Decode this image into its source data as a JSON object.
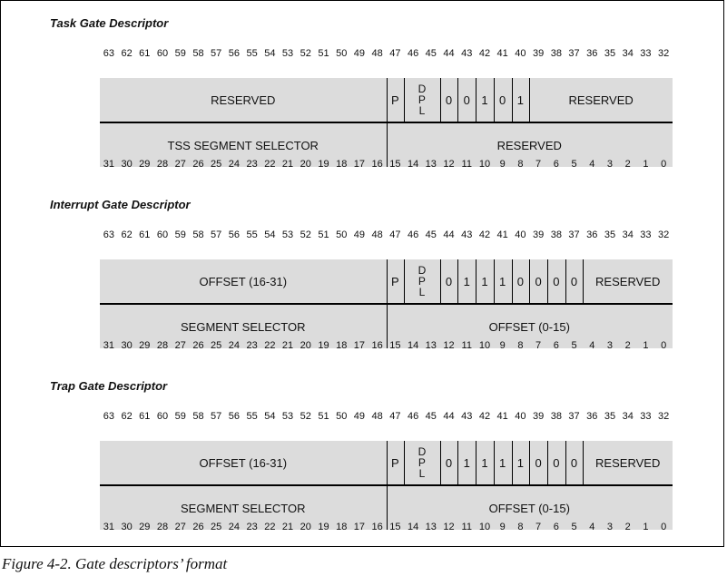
{
  "caption": "Figure 4-2. Gate descriptors’ format",
  "high_bits": [
    "63",
    "62",
    "61",
    "60",
    "59",
    "58",
    "57",
    "56",
    "55",
    "54",
    "53",
    "52",
    "51",
    "50",
    "49",
    "48",
    "47",
    "46",
    "45",
    "44",
    "43",
    "42",
    "41",
    "40",
    "39",
    "38",
    "37",
    "36",
    "35",
    "34",
    "33",
    "32"
  ],
  "low_bits": [
    "31",
    "30",
    "29",
    "28",
    "27",
    "26",
    "25",
    "24",
    "23",
    "22",
    "21",
    "20",
    "19",
    "18",
    "17",
    "16",
    "15",
    "14",
    "13",
    "12",
    "11",
    "10",
    "9",
    "8",
    "7",
    "6",
    "5",
    "4",
    "3",
    "2",
    "1",
    "0"
  ],
  "descriptors": [
    {
      "title": "Task Gate Descriptor",
      "upper": [
        {
          "label": "RESERVED",
          "from": 63,
          "to": 48
        },
        {
          "label": "P",
          "from": 47,
          "to": 47
        },
        {
          "label": "DPL",
          "from": 46,
          "to": 45
        },
        {
          "label": "0",
          "from": 44,
          "to": 44
        },
        {
          "label": "0",
          "from": 43,
          "to": 43
        },
        {
          "label": "1",
          "from": 42,
          "to": 42
        },
        {
          "label": "0",
          "from": 41,
          "to": 41
        },
        {
          "label": "1",
          "from": 40,
          "to": 40
        },
        {
          "label": "RESERVED",
          "from": 39,
          "to": 32
        }
      ],
      "lower": [
        {
          "label": "TSS SEGMENT SELECTOR",
          "from": 31,
          "to": 16
        },
        {
          "label": "RESERVED",
          "from": 15,
          "to": 0
        }
      ]
    },
    {
      "title": "Interrupt Gate Descriptor",
      "upper": [
        {
          "label": "OFFSET (16-31)",
          "from": 63,
          "to": 48
        },
        {
          "label": "P",
          "from": 47,
          "to": 47
        },
        {
          "label": "DPL",
          "from": 46,
          "to": 45
        },
        {
          "label": "0",
          "from": 44,
          "to": 44
        },
        {
          "label": "1",
          "from": 43,
          "to": 43
        },
        {
          "label": "1",
          "from": 42,
          "to": 42
        },
        {
          "label": "1",
          "from": 41,
          "to": 41
        },
        {
          "label": "0",
          "from": 40,
          "to": 40
        },
        {
          "label": "0",
          "from": 39,
          "to": 39
        },
        {
          "label": "0",
          "from": 38,
          "to": 38
        },
        {
          "label": "0",
          "from": 37,
          "to": 37
        },
        {
          "label": "RESERVED",
          "from": 36,
          "to": 32
        }
      ],
      "lower": [
        {
          "label": "SEGMENT SELECTOR",
          "from": 31,
          "to": 16
        },
        {
          "label": "OFFSET (0-15)",
          "from": 15,
          "to": 0
        }
      ]
    },
    {
      "title": "Trap Gate Descriptor",
      "upper": [
        {
          "label": "OFFSET (16-31)",
          "from": 63,
          "to": 48
        },
        {
          "label": "P",
          "from": 47,
          "to": 47
        },
        {
          "label": "DPL",
          "from": 46,
          "to": 45
        },
        {
          "label": "0",
          "from": 44,
          "to": 44
        },
        {
          "label": "1",
          "from": 43,
          "to": 43
        },
        {
          "label": "1",
          "from": 42,
          "to": 42
        },
        {
          "label": "1",
          "from": 41,
          "to": 41
        },
        {
          "label": "1",
          "from": 40,
          "to": 40
        },
        {
          "label": "0",
          "from": 39,
          "to": 39
        },
        {
          "label": "0",
          "from": 38,
          "to": 38
        },
        {
          "label": "0",
          "from": 37,
          "to": 37
        },
        {
          "label": "RESERVED",
          "from": 36,
          "to": 32
        }
      ],
      "lower": [
        {
          "label": "SEGMENT SELECTOR",
          "from": 31,
          "to": 16
        },
        {
          "label": "OFFSET (0-15)",
          "from": 15,
          "to": 0
        }
      ]
    }
  ]
}
